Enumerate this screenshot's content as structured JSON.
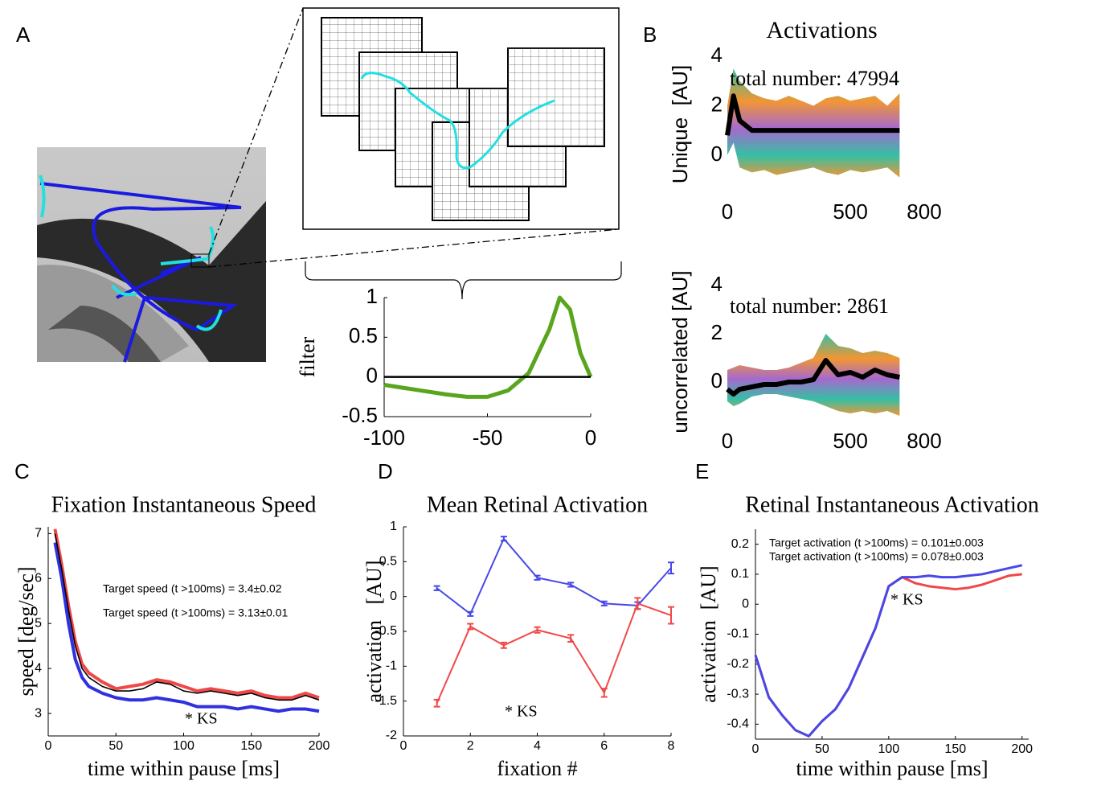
{
  "panel_labels": [
    "A",
    "B",
    "C",
    "D",
    "E"
  ],
  "chart_data": [
    {
      "type": "line",
      "ylabel": "filter",
      "x": [
        -100,
        -90,
        -80,
        -70,
        -60,
        -50,
        -40,
        -30,
        -20,
        -15,
        -10,
        -5,
        0
      ],
      "series": [
        {
          "color": "#5aa51e",
          "values": [
            -0.1,
            -0.14,
            -0.18,
            -0.22,
            -0.25,
            -0.25,
            -0.17,
            0.05,
            0.6,
            1.0,
            0.85,
            0.3,
            0
          ]
        },
        {
          "color": "#000000",
          "values": [
            0,
            0,
            0,
            0,
            0,
            0,
            0,
            0,
            0,
            0,
            0,
            0,
            0
          ]
        }
      ],
      "xlim": [
        -100,
        0
      ],
      "xticks": [
        -100,
        -50,
        0
      ],
      "ylim": [
        -0.5,
        1
      ],
      "yticks": [
        -0.5,
        0,
        0.5,
        1
      ]
    },
    {
      "type": "line",
      "title": "Activations",
      "ylabel": "Unique  [AU]",
      "annotations": [
        {
          "text": "total number: 47994"
        }
      ],
      "x": [
        0,
        25,
        50,
        100,
        150,
        200,
        250,
        300,
        350,
        400,
        450,
        500,
        550,
        600,
        650,
        700
      ],
      "band": {
        "upper": [
          2,
          3.5,
          3,
          2.5,
          2.3,
          2.2,
          2.4,
          2.2,
          2.0,
          2.3,
          2.4,
          2.2,
          2.3,
          2.4,
          2.0,
          2.5
        ],
        "lower": [
          0,
          0.5,
          -0.5,
          -0.7,
          -0.6,
          -0.8,
          -0.7,
          -0.6,
          -0.5,
          -0.7,
          -0.8,
          -0.6,
          -0.7,
          -0.6,
          -0.5,
          -0.9
        ]
      },
      "series": [
        {
          "color": "#000000",
          "values": [
            0.8,
            2.4,
            1.4,
            1.0,
            1.0,
            1.0,
            1.0,
            1.0,
            1.0,
            1.0,
            1.0,
            1.0,
            1.0,
            1.0,
            1.0,
            1.0
          ]
        }
      ],
      "xlim": [
        0,
        800
      ],
      "xticks": [
        0,
        500,
        800
      ],
      "ylim": [
        -1.5,
        4
      ],
      "yticks": [
        0,
        2,
        4
      ]
    },
    {
      "type": "line",
      "ylabel": "uncorrelated [AU]",
      "annotations": [
        {
          "text": "total number: 2861"
        }
      ],
      "x": [
        0,
        25,
        50,
        100,
        150,
        200,
        250,
        300,
        350,
        400,
        450,
        500,
        550,
        600,
        650,
        700
      ],
      "band": {
        "upper": [
          0.5,
          0.6,
          0.7,
          0.6,
          0.5,
          0.5,
          0.6,
          0.8,
          1.0,
          2.0,
          1.5,
          1.4,
          1.2,
          1.3,
          1.2,
          1.0
        ],
        "lower": [
          -0.8,
          -1.0,
          -0.9,
          -0.6,
          -0.5,
          -0.5,
          -0.6,
          -0.7,
          -0.8,
          -1.0,
          -1.2,
          -1.3,
          -1.2,
          -1.3,
          -1.2,
          -1.4
        ]
      },
      "series": [
        {
          "color": "#000000",
          "values": [
            -0.3,
            -0.5,
            -0.3,
            -0.2,
            -0.1,
            -0.1,
            0,
            0,
            0.1,
            0.9,
            0.3,
            0.4,
            0.2,
            0.5,
            0.3,
            0.2
          ]
        }
      ],
      "xlim": [
        0,
        800
      ],
      "xticks": [
        0,
        500,
        800
      ],
      "ylim": [
        -1.5,
        4
      ],
      "yticks": [
        0,
        2,
        4
      ]
    },
    {
      "type": "line",
      "title": "Fixation Instantaneous Speed",
      "xlabel": "time within pause [ms]",
      "ylabel": "speed [deg/sec]",
      "annotations": [
        {
          "text": "Target speed (t >100ms) = 3.4±0.02",
          "color": "#f04848"
        },
        {
          "text": "Target speed (t >100ms) = 3.13±0.01",
          "color": "#3030e0"
        },
        {
          "text": "* KS"
        }
      ],
      "x": [
        5,
        10,
        15,
        20,
        25,
        30,
        40,
        50,
        60,
        70,
        80,
        90,
        100,
        110,
        120,
        130,
        140,
        150,
        160,
        170,
        180,
        190,
        200
      ],
      "series": [
        {
          "color": "#f04848",
          "values": [
            7.1,
            6.3,
            5.4,
            4.6,
            4.1,
            3.9,
            3.7,
            3.55,
            3.6,
            3.65,
            3.75,
            3.7,
            3.6,
            3.5,
            3.55,
            3.5,
            3.45,
            3.5,
            3.4,
            3.35,
            3.35,
            3.45,
            3.35
          ]
        },
        {
          "color": "#3030e0",
          "values": [
            6.8,
            6.0,
            5.0,
            4.2,
            3.8,
            3.6,
            3.45,
            3.35,
            3.3,
            3.3,
            3.35,
            3.3,
            3.25,
            3.15,
            3.15,
            3.15,
            3.1,
            3.15,
            3.1,
            3.05,
            3.1,
            3.1,
            3.05
          ]
        },
        {
          "color": "#000000",
          "values": [
            7.0,
            6.2,
            5.3,
            4.5,
            4.0,
            3.8,
            3.6,
            3.5,
            3.5,
            3.55,
            3.7,
            3.65,
            3.5,
            3.45,
            3.5,
            3.45,
            3.4,
            3.45,
            3.35,
            3.3,
            3.3,
            3.4,
            3.3
          ]
        }
      ],
      "xlim": [
        0,
        200
      ],
      "xticks": [
        0,
        50,
        100,
        150,
        200
      ],
      "ylim": [
        2.5,
        7.15
      ],
      "yticks": [
        3,
        4,
        5,
        6,
        7
      ]
    },
    {
      "type": "line",
      "title": "Mean Retinal Activation",
      "xlabel": "fixation #",
      "ylabel": "activation   [AU]",
      "annotations": [
        {
          "text": "* KS"
        }
      ],
      "x": [
        1,
        2,
        3,
        4,
        5,
        6,
        7,
        8
      ],
      "series": [
        {
          "color": "#4848e8",
          "values": [
            0.12,
            -0.25,
            0.83,
            0.27,
            0.17,
            -0.1,
            -0.13,
            0.41
          ],
          "errors": [
            0.03,
            0.03,
            0.03,
            0.03,
            0.03,
            0.03,
            0.05,
            0.08
          ]
        },
        {
          "color": "#f04848",
          "values": [
            -1.53,
            -0.43,
            -0.7,
            -0.48,
            -0.6,
            -1.38,
            -0.1,
            -0.27
          ],
          "errors": [
            0.05,
            0.04,
            0.04,
            0.04,
            0.05,
            0.06,
            0.08,
            0.12
          ]
        }
      ],
      "xlim": [
        0,
        8
      ],
      "xticks": [
        0,
        2,
        4,
        6,
        8
      ],
      "ylim": [
        -2,
        1
      ],
      "yticks": [
        -2,
        -1.5,
        -1,
        -0.5,
        0,
        0.5,
        1
      ]
    },
    {
      "type": "line",
      "title": "Retinal Instantaneous Activation",
      "xlabel": "time within pause [ms]",
      "ylabel": "activation  [AU]",
      "annotations": [
        {
          "text": "Target activation (t >100ms) = 0.101±0.003",
          "color": "#3030e0"
        },
        {
          "text": "Target activation (t >100ms) = 0.078±0.003",
          "color": "#f04848"
        },
        {
          "text": "* KS"
        }
      ],
      "x": [
        0,
        10,
        20,
        30,
        40,
        50,
        60,
        70,
        80,
        90,
        100,
        110,
        120,
        130,
        140,
        150,
        160,
        170,
        180,
        190,
        200
      ],
      "series": [
        {
          "color": "#f04848",
          "values": [
            -0.17,
            -0.31,
            -0.37,
            -0.42,
            -0.44,
            -0.39,
            -0.35,
            -0.28,
            -0.18,
            -0.08,
            0.06,
            0.09,
            0.07,
            0.06,
            0.055,
            0.05,
            0.055,
            0.065,
            0.08,
            0.095,
            0.1
          ]
        },
        {
          "color": "#4848e8",
          "values": [
            -0.17,
            -0.31,
            -0.37,
            -0.42,
            -0.44,
            -0.39,
            -0.35,
            -0.28,
            -0.18,
            -0.08,
            0.06,
            0.09,
            0.09,
            0.095,
            0.09,
            0.09,
            0.095,
            0.1,
            0.11,
            0.12,
            0.13
          ]
        }
      ],
      "xlim": [
        0,
        205
      ],
      "xticks": [
        0,
        50,
        100,
        150,
        200
      ],
      "ylim": [
        -0.45,
        0.25
      ],
      "yticks": [
        -0.4,
        -0.3,
        -0.2,
        -0.1,
        0,
        0.1,
        0.2
      ]
    }
  ]
}
